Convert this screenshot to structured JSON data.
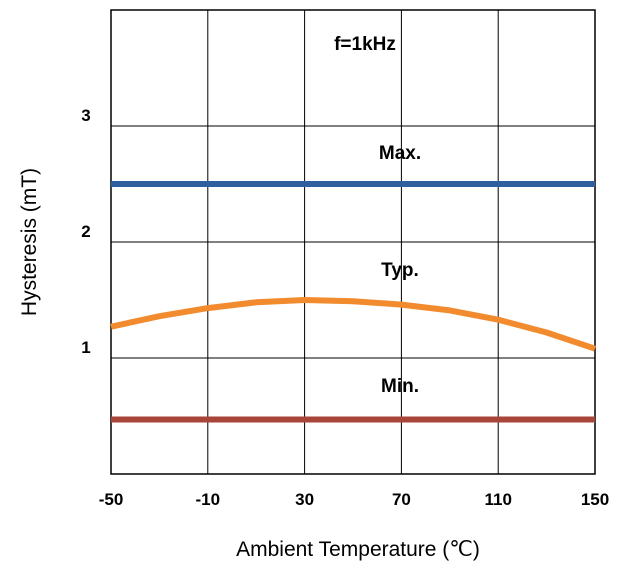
{
  "chart_data": {
    "type": "line",
    "xlabel": "Ambient Temperature (℃)",
    "ylabel": "Hysteresis (mT)",
    "xlim": [
      -50,
      150
    ],
    "ylim": [
      0,
      4
    ],
    "x_ticks": [
      "-50",
      "-10",
      "30",
      "70",
      "110",
      "150"
    ],
    "y_ticks": [
      "1",
      "2",
      "3"
    ],
    "grid": true,
    "annotations": [
      "f=1kHz",
      "Max.",
      "Typ.",
      "Min."
    ],
    "series": [
      {
        "name": "Max.",
        "color": "#2e5fa0",
        "x": [
          -50,
          150
        ],
        "y": [
          2.5,
          2.5
        ]
      },
      {
        "name": "Typ.",
        "color": "#f28a2e",
        "x": [
          -50,
          -30,
          -10,
          10,
          30,
          50,
          70,
          90,
          110,
          130,
          150
        ],
        "y": [
          1.27,
          1.36,
          1.43,
          1.48,
          1.5,
          1.49,
          1.46,
          1.41,
          1.33,
          1.22,
          1.08
        ]
      },
      {
        "name": "Min.",
        "color": "#a8453a",
        "x": [
          -50,
          150
        ],
        "y": [
          0.47,
          0.47
        ]
      }
    ]
  }
}
